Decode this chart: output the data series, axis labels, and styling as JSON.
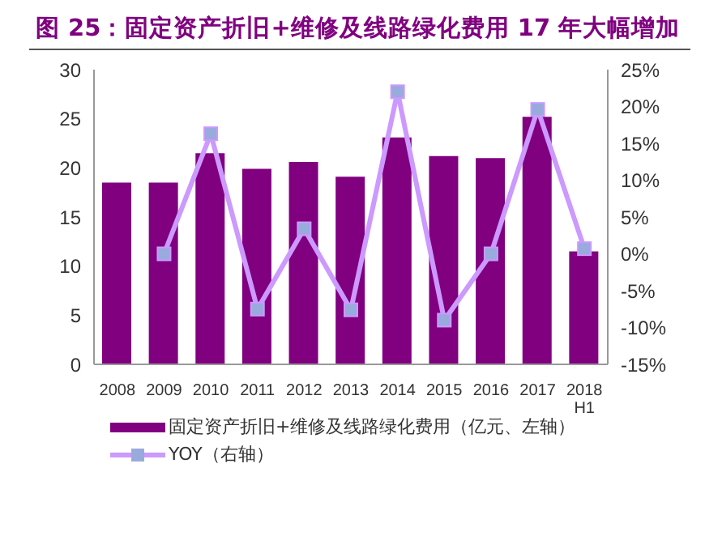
{
  "chart_data": {
    "type": "bar",
    "title": "图 25：固定资产折旧+维修及线路绿化费用 17 年大幅增加",
    "categories": [
      "2008",
      "2009",
      "2010",
      "2011",
      "2012",
      "2013",
      "2014",
      "2015",
      "2016",
      "2017",
      "2018 H1"
    ],
    "series": [
      {
        "name": "固定资产折旧+维修及线路绿化费用（亿元、左轴）",
        "color": "#800080",
        "values": [
          18.5,
          18.5,
          21.5,
          19.9,
          20.6,
          19.1,
          23.1,
          21.2,
          21.0,
          25.2,
          11.5
        ]
      },
      {
        "name": "YOY（右轴）",
        "type": "line",
        "axis": "y2",
        "color": "#cc99ff",
        "marker": "square",
        "values": [
          null,
          0,
          16.3,
          -7.5,
          3.4,
          -7.6,
          22.0,
          -9.0,
          0,
          19.6,
          0.7
        ]
      }
    ],
    "ylim": [
      0,
      30
    ],
    "yticks": [
      0,
      5,
      10,
      15,
      20,
      25,
      30
    ],
    "y2lim": [
      -15,
      25
    ],
    "y2ticks": [
      {
        "value": -15,
        "label": "-15%"
      },
      {
        "value": -10,
        "label": "-10%"
      },
      {
        "value": -5,
        "label": "-5%"
      },
      {
        "value": 0,
        "label": "0%"
      },
      {
        "value": 5,
        "label": "5%"
      },
      {
        "value": 10,
        "label": "10%"
      },
      {
        "value": 15,
        "label": "15%"
      },
      {
        "value": 20,
        "label": "20%"
      },
      {
        "value": 25,
        "label": "25%"
      }
    ],
    "grid": false,
    "legend": "bottom"
  }
}
